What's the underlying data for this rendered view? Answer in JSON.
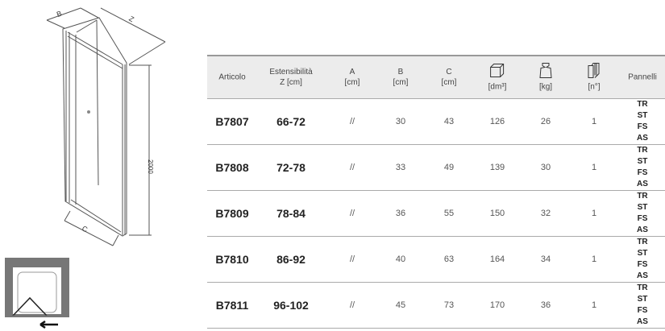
{
  "drawing": {
    "label_b": "B",
    "label_z": "Z",
    "label_c": "C",
    "height_label": "2000"
  },
  "headers": [
    {
      "line1": "Articolo",
      "line2": ""
    },
    {
      "line1": "Estensibilità",
      "line2": "Z [cm]"
    },
    {
      "line1": "A",
      "line2": "[cm]"
    },
    {
      "line1": "B",
      "line2": "[cm]"
    },
    {
      "line1": "C",
      "line2": "[cm]"
    },
    {
      "icon": "box-volume-icon",
      "line2": "[dm³]"
    },
    {
      "icon": "weight-icon",
      "line2": "[kg]"
    },
    {
      "icon": "panels-count-icon",
      "line2": "[n°]"
    },
    {
      "line1": "Pannelli",
      "line2": ""
    }
  ],
  "rows": [
    {
      "articolo": "B7807",
      "z": "66-72",
      "a": "//",
      "b": "30",
      "c": "43",
      "dm3": "126",
      "kg": "26",
      "n": "1",
      "pannelli": [
        "TR",
        "ST",
        "FS",
        "AS"
      ]
    },
    {
      "articolo": "B7808",
      "z": "72-78",
      "a": "//",
      "b": "33",
      "c": "49",
      "dm3": "139",
      "kg": "30",
      "n": "1",
      "pannelli": [
        "TR",
        "ST",
        "FS",
        "AS"
      ]
    },
    {
      "articolo": "B7809",
      "z": "78-84",
      "a": "//",
      "b": "36",
      "c": "55",
      "dm3": "150",
      "kg": "32",
      "n": "1",
      "pannelli": [
        "TR",
        "ST",
        "FS",
        "AS"
      ]
    },
    {
      "articolo": "B7810",
      "z": "86-92",
      "a": "//",
      "b": "40",
      "c": "63",
      "dm3": "164",
      "kg": "34",
      "n": "1",
      "pannelli": [
        "TR",
        "ST",
        "FS",
        "AS"
      ]
    },
    {
      "articolo": "B7811",
      "z": "96-102",
      "a": "//",
      "b": "45",
      "c": "73",
      "dm3": "170",
      "kg": "36",
      "n": "1",
      "pannelli": [
        "TR",
        "ST",
        "FS",
        "AS"
      ]
    }
  ]
}
